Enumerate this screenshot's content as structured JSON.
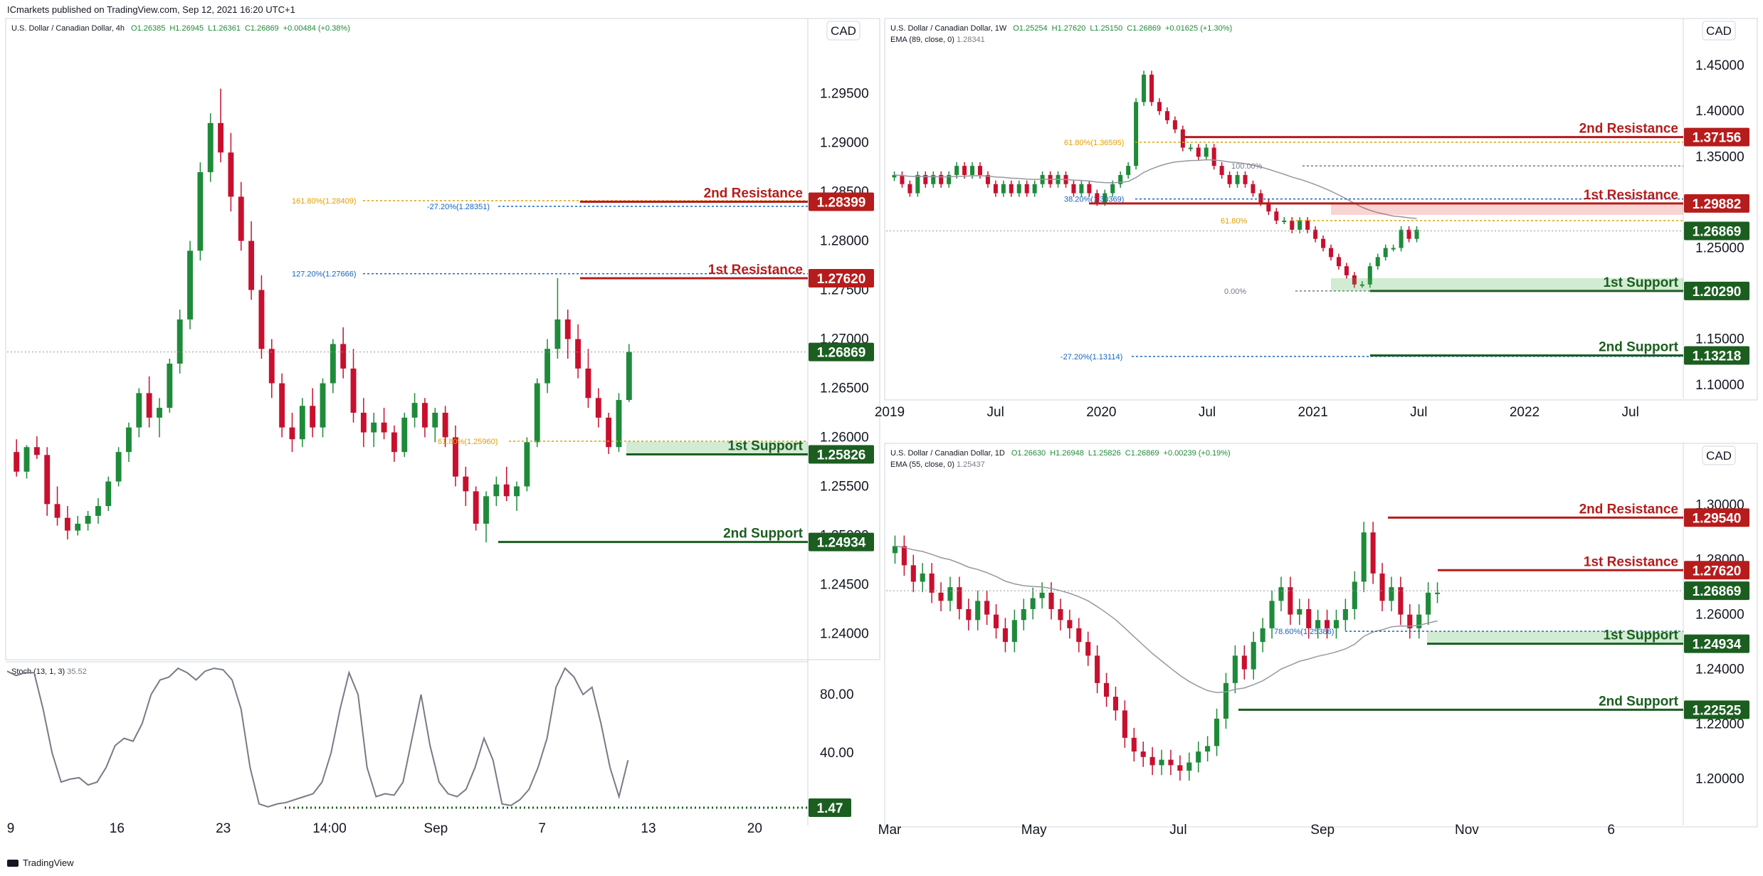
{
  "header": {
    "text": "ICmarkets published on TradingView.com, Sep 12, 2021 16:20 UTC+1"
  },
  "footer": {
    "text": "TradingView"
  },
  "colors": {
    "up": "#1e8b3a",
    "down": "#c8102e",
    "resistance": "#b71c1c",
    "support": "#1b5e20",
    "fib_orange": "#e0a000",
    "fib_blue": "#1565c0"
  },
  "chart_data": [
    {
      "id": "4h",
      "type": "candlestick",
      "legend": {
        "symbol": "U.S. Dollar / Canadian Dollar, 4h",
        "o": "O1.26385",
        "h": "H1.26945",
        "l": "L1.26361",
        "c": "C1.26869",
        "chg": "+0.00484 (+0.38%)"
      },
      "currency": "CAD",
      "ylim": [
        1.2375,
        1.3025
      ],
      "yticks": [
        "1.29500",
        "1.29000",
        "1.28500",
        "1.28000",
        "1.27500",
        "1.27000",
        "1.26500",
        "1.26000",
        "1.25500",
        "1.25000",
        "1.24500",
        "1.24000"
      ],
      "xticks": [
        "9",
        "16",
        "23",
        "14:00",
        "Sep",
        "7",
        "13",
        "20"
      ],
      "last_price": "1.26869",
      "levels": [
        {
          "name": "2nd Resistance",
          "value": "1.28399",
          "type": "resistance"
        },
        {
          "name": "1st Resistance",
          "value": "1.27620",
          "type": "resistance"
        },
        {
          "name": "1st Support",
          "value": "1.25826",
          "type": "support"
        },
        {
          "name": "2nd Support",
          "value": "1.24934",
          "type": "support"
        }
      ],
      "fibs": [
        {
          "label": "161.80%(1.28409)",
          "value": 1.28409,
          "color": "orange"
        },
        {
          "label": "-27.20%(1.28351)",
          "value": 1.28351,
          "color": "blue"
        },
        {
          "label": "127.20%(1.27666)",
          "value": 1.27666,
          "color": "blue"
        },
        {
          "label": "61.80%(1.25960)",
          "value": 1.2596,
          "color": "orange"
        }
      ],
      "oscillator": {
        "name": "Stoch (13, 1, 3)",
        "value": "35.52",
        "yticks": [
          "80.00",
          "40.00"
        ],
        "marker": "1.47",
        "values": [
          96,
          93,
          95,
          95,
          70,
          40,
          20,
          22,
          23,
          18,
          20,
          30,
          45,
          50,
          48,
          60,
          80,
          90,
          92,
          98,
          95,
          90,
          96,
          98,
          97,
          90,
          70,
          30,
          5,
          3,
          5,
          6,
          8,
          10,
          12,
          20,
          40,
          70,
          95,
          80,
          30,
          10,
          12,
          11,
          20,
          50,
          80,
          45,
          20,
          12,
          10,
          15,
          30,
          50,
          35,
          5,
          4,
          8,
          15,
          30,
          50,
          85,
          98,
          92,
          80,
          85,
          60,
          30,
          10,
          35
        ]
      },
      "candles": [
        [
          1.2585,
          1.2598,
          1.256,
          1.2565
        ],
        [
          1.2565,
          1.2592,
          1.2558,
          1.259
        ],
        [
          1.259,
          1.2601,
          1.2578,
          1.2582
        ],
        [
          1.2582,
          1.259,
          1.252,
          1.2532
        ],
        [
          1.2532,
          1.255,
          1.251,
          1.2518
        ],
        [
          1.2518,
          1.253,
          1.2496,
          1.2505
        ],
        [
          1.2505,
          1.252,
          1.25,
          1.2512
        ],
        [
          1.2512,
          1.2525,
          1.2505,
          1.252
        ],
        [
          1.252,
          1.2538,
          1.2512,
          1.253
        ],
        [
          1.253,
          1.256,
          1.2525,
          1.2555
        ],
        [
          1.2555,
          1.259,
          1.255,
          1.2585
        ],
        [
          1.2585,
          1.2615,
          1.2575,
          1.261
        ],
        [
          1.261,
          1.265,
          1.26,
          1.2645
        ],
        [
          1.2645,
          1.2662,
          1.261,
          1.262
        ],
        [
          1.262,
          1.264,
          1.26,
          1.263
        ],
        [
          1.263,
          1.268,
          1.2625,
          1.2675
        ],
        [
          1.2675,
          1.273,
          1.2665,
          1.272
        ],
        [
          1.272,
          1.28,
          1.271,
          1.279
        ],
        [
          1.279,
          1.288,
          1.278,
          1.287
        ],
        [
          1.287,
          1.293,
          1.286,
          1.292
        ],
        [
          1.292,
          1.2955,
          1.288,
          1.289
        ],
        [
          1.289,
          1.291,
          1.283,
          1.2845
        ],
        [
          1.2845,
          1.286,
          1.279,
          1.28
        ],
        [
          1.28,
          1.282,
          1.274,
          1.275
        ],
        [
          1.275,
          1.2765,
          1.268,
          1.269
        ],
        [
          1.269,
          1.27,
          1.264,
          1.2655
        ],
        [
          1.2655,
          1.2665,
          1.26,
          1.261
        ],
        [
          1.261,
          1.2625,
          1.2585,
          1.2598
        ],
        [
          1.2598,
          1.264,
          1.259,
          1.2632
        ],
        [
          1.2632,
          1.265,
          1.26,
          1.261
        ],
        [
          1.261,
          1.266,
          1.26,
          1.2655
        ],
        [
          1.2655,
          1.27,
          1.2645,
          1.2695
        ],
        [
          1.2695,
          1.2712,
          1.266,
          1.267
        ],
        [
          1.267,
          1.269,
          1.2615,
          1.2625
        ],
        [
          1.2625,
          1.264,
          1.259,
          1.2605
        ],
        [
          1.2605,
          1.2625,
          1.259,
          1.2615
        ],
        [
          1.2615,
          1.263,
          1.2598,
          1.2605
        ],
        [
          1.2605,
          1.2612,
          1.2575,
          1.2585
        ],
        [
          1.2585,
          1.2625,
          1.258,
          1.262
        ],
        [
          1.262,
          1.2645,
          1.261,
          1.2635
        ],
        [
          1.2635,
          1.264,
          1.26,
          1.261
        ],
        [
          1.261,
          1.263,
          1.2595,
          1.2625
        ],
        [
          1.2625,
          1.2632,
          1.259,
          1.26
        ],
        [
          1.26,
          1.2612,
          1.255,
          1.256
        ],
        [
          1.256,
          1.257,
          1.253,
          1.2545
        ],
        [
          1.2545,
          1.255,
          1.2505,
          1.2512
        ],
        [
          1.2512,
          1.2545,
          1.2493,
          1.254
        ],
        [
          1.254,
          1.256,
          1.253,
          1.2552
        ],
        [
          1.2552,
          1.257,
          1.2535,
          1.254
        ],
        [
          1.254,
          1.2555,
          1.2525,
          1.255
        ],
        [
          1.255,
          1.26,
          1.2545,
          1.2595
        ],
        [
          1.2595,
          1.266,
          1.259,
          1.2655
        ],
        [
          1.2655,
          1.27,
          1.2645,
          1.269
        ],
        [
          1.269,
          1.2762,
          1.268,
          1.272
        ],
        [
          1.272,
          1.273,
          1.268,
          1.27
        ],
        [
          1.27,
          1.2715,
          1.266,
          1.267
        ],
        [
          1.267,
          1.269,
          1.263,
          1.264
        ],
        [
          1.264,
          1.265,
          1.261,
          1.262
        ],
        [
          1.262,
          1.2625,
          1.2583,
          1.259
        ],
        [
          1.259,
          1.2645,
          1.2585,
          1.2638
        ],
        [
          1.2638,
          1.2695,
          1.2636,
          1.2687
        ]
      ]
    },
    {
      "id": "1w",
      "type": "candlestick",
      "legend": {
        "symbol": "U.S. Dollar / Canadian Dollar, 1W",
        "o": "O1.25254",
        "h": "H1.27620",
        "l": "L1.25150",
        "c": "C1.26869",
        "chg": "+0.01625 (+1.30%)"
      },
      "indicator": {
        "name": "EMA (89, close, 0)",
        "value": "1.28341"
      },
      "currency": "CAD",
      "ylim": [
        1.085,
        1.5
      ],
      "yticks": [
        "1.45000",
        "1.40000",
        "1.35000",
        "1.30000",
        "1.25000",
        "1.20000",
        "1.15000",
        "1.10000"
      ],
      "xticks": [
        "2019",
        "Jul",
        "2020",
        "Jul",
        "2021",
        "Jul",
        "2022",
        "Jul"
      ],
      "last_price": "1.26869",
      "levels": [
        {
          "name": "2nd Resistance",
          "value": "1.37156",
          "type": "resistance"
        },
        {
          "name": "1st Resistance",
          "value": "1.29882",
          "type": "resistance"
        },
        {
          "name": "1st Support",
          "value": "1.20290",
          "type": "support"
        },
        {
          "name": "2nd Support",
          "value": "1.13218",
          "type": "support"
        }
      ],
      "fibs": [
        {
          "label": "61.80%(1.36595)",
          "value": 1.36595,
          "color": "orange"
        },
        {
          "label": "100.00%",
          "value": 1.34,
          "color": "grey"
        },
        {
          "label": "38.20%(1.30369)",
          "value": 1.30369,
          "color": "blue"
        },
        {
          "label": "61.80%",
          "value": 1.28,
          "color": "orange"
        },
        {
          "label": "0.00%",
          "value": 1.2029,
          "color": "grey"
        },
        {
          "label": "-27.20%(1.13114)",
          "value": 1.13114,
          "color": "blue"
        }
      ],
      "closes": [
        1.33,
        1.32,
        1.31,
        1.33,
        1.32,
        1.33,
        1.32,
        1.33,
        1.34,
        1.33,
        1.34,
        1.33,
        1.32,
        1.31,
        1.32,
        1.31,
        1.32,
        1.31,
        1.32,
        1.33,
        1.32,
        1.33,
        1.32,
        1.31,
        1.32,
        1.31,
        1.3,
        1.31,
        1.32,
        1.33,
        1.34,
        1.41,
        1.44,
        1.41,
        1.4,
        1.39,
        1.38,
        1.36,
        1.36,
        1.35,
        1.36,
        1.34,
        1.33,
        1.32,
        1.33,
        1.32,
        1.31,
        1.3,
        1.29,
        1.28,
        1.28,
        1.27,
        1.28,
        1.27,
        1.26,
        1.25,
        1.24,
        1.23,
        1.22,
        1.21,
        1.21,
        1.23,
        1.24,
        1.25,
        1.25,
        1.27,
        1.26,
        1.27
      ]
    },
    {
      "id": "1d",
      "type": "candlestick",
      "legend": {
        "symbol": "U.S. Dollar / Canadian Dollar, 1D",
        "o": "O1.26630",
        "h": "H1.26948",
        "l": "L1.25826",
        "c": "C1.26869",
        "chg": "+0.00239 (+0.19%)"
      },
      "indicator": {
        "name": "EMA (55, close, 0)",
        "value": "1.25437"
      },
      "currency": "CAD",
      "ylim": [
        1.183,
        1.322
      ],
      "yticks": [
        "1.30000",
        "1.28000",
        "1.26000",
        "1.24000",
        "1.22000",
        "1.20000"
      ],
      "xticks": [
        "Mar",
        "May",
        "Jul",
        "Sep",
        "Nov",
        "6"
      ],
      "last_price": "1.26869",
      "levels": [
        {
          "name": "2nd Resistance",
          "value": "1.29540",
          "type": "resistance"
        },
        {
          "name": "1st Resistance",
          "value": "1.27620",
          "type": "resistance"
        },
        {
          "name": "1st Support",
          "value": "1.24934",
          "type": "support"
        },
        {
          "name": "2nd Support",
          "value": "1.22525",
          "type": "support"
        }
      ],
      "fibs": [
        {
          "label": "78.60%(1.25386)",
          "value": 1.2539,
          "color": "blue"
        }
      ],
      "closes": [
        1.285,
        1.278,
        1.272,
        1.275,
        1.268,
        1.265,
        1.27,
        1.262,
        1.258,
        1.265,
        1.26,
        1.255,
        1.25,
        1.258,
        1.262,
        1.266,
        1.268,
        1.262,
        1.258,
        1.255,
        1.25,
        1.245,
        1.235,
        1.23,
        1.225,
        1.215,
        1.21,
        1.208,
        1.205,
        1.207,
        1.205,
        1.203,
        1.206,
        1.21,
        1.212,
        1.222,
        1.235,
        1.245,
        1.24,
        1.25,
        1.255,
        1.265,
        1.27,
        1.26,
        1.262,
        1.255,
        1.258,
        1.255,
        1.258,
        1.262,
        1.272,
        1.29,
        1.275,
        1.265,
        1.27,
        1.26,
        1.255,
        1.26,
        1.268,
        1.268
      ]
    }
  ]
}
